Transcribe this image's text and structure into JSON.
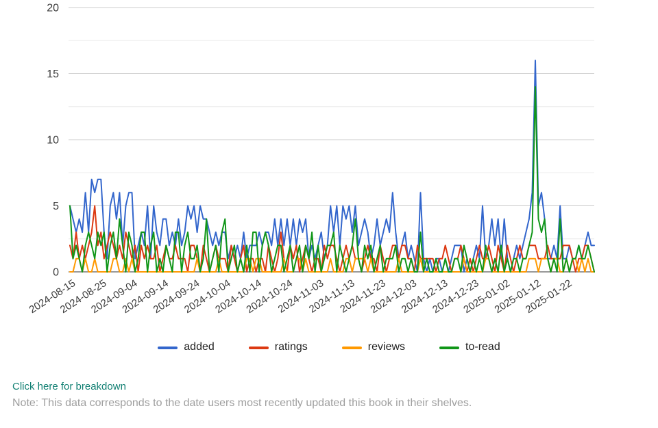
{
  "chart_data": {
    "type": "line",
    "title": "",
    "xlabel": "",
    "ylabel": "",
    "ylim": [
      0,
      20
    ],
    "y_ticks": [
      0,
      5,
      10,
      15,
      20
    ],
    "y_minor_ticks": [
      2.5,
      7.5,
      12.5,
      17.5
    ],
    "grid": true,
    "legend_position": "bottom",
    "x_tick_interval_days": 10,
    "x_tick_labels": [
      "2024-08-15",
      "2024-08-25",
      "2024-09-04",
      "2024-09-14",
      "2024-09-24",
      "2024-10-04",
      "2024-10-14",
      "2024-10-24",
      "2024-11-03",
      "2024-11-13",
      "2024-11-23",
      "2024-12-03",
      "2024-12-13",
      "2024-12-23",
      "2025-01-02",
      "2025-01-12",
      "2025-01-22"
    ],
    "series": [
      {
        "name": "added",
        "color": "#3366cc",
        "values": [
          5,
          4,
          3,
          4,
          3,
          6,
          3,
          7,
          6,
          7,
          7,
          3,
          1,
          5,
          6,
          4,
          6,
          2,
          5,
          6,
          6,
          1,
          2,
          3,
          2,
          5,
          1,
          5,
          3,
          2,
          4,
          4,
          2,
          3,
          2,
          4,
          2,
          3,
          5,
          4,
          5,
          3,
          5,
          4,
          4,
          3,
          2,
          3,
          2,
          3,
          3,
          1,
          2,
          1,
          2,
          1,
          3,
          1,
          2,
          2,
          2,
          3,
          2,
          3,
          3,
          2,
          4,
          2,
          4,
          2,
          4,
          2,
          4,
          2,
          4,
          3,
          4,
          1,
          2,
          1,
          2,
          3,
          1,
          2,
          5,
          3,
          5,
          2,
          5,
          4,
          5,
          3,
          5,
          2,
          3,
          4,
          3,
          1,
          2,
          4,
          2,
          3,
          4,
          3,
          6,
          3,
          1,
          2,
          3,
          1,
          2,
          1,
          0,
          6,
          1,
          0,
          1,
          0,
          1,
          1,
          0,
          1,
          0,
          1,
          2,
          2,
          2,
          0,
          1,
          0,
          1,
          2,
          1,
          5,
          1,
          2,
          4,
          2,
          4,
          1,
          4,
          1,
          0,
          1,
          2,
          1,
          2,
          3,
          4,
          6,
          16,
          5,
          6,
          4,
          1,
          1,
          2,
          1,
          5,
          1,
          1,
          2,
          1,
          1,
          2,
          1,
          2,
          3,
          2,
          2
        ]
      },
      {
        "name": "ratings",
        "color": "#dc3912",
        "values": [
          2,
          1,
          3,
          1,
          2,
          1,
          2,
          3,
          5,
          2,
          3,
          1,
          2,
          3,
          2,
          1,
          2,
          1,
          3,
          2,
          1,
          2,
          0,
          2,
          1,
          2,
          1,
          1,
          2,
          0,
          1,
          2,
          1,
          1,
          2,
          1,
          1,
          1,
          0,
          2,
          2,
          1,
          0,
          2,
          1,
          0,
          1,
          2,
          1,
          1,
          1,
          0,
          2,
          1,
          0,
          1,
          2,
          0,
          1,
          1,
          0,
          1,
          1,
          0,
          2,
          1,
          0,
          1,
          3,
          1,
          0,
          2,
          1,
          2,
          0,
          1,
          2,
          1,
          0,
          1,
          1,
          0,
          2,
          1,
          2,
          2,
          1,
          0,
          1,
          2,
          1,
          2,
          1,
          1,
          0,
          1,
          2,
          1,
          1,
          0,
          2,
          1,
          0,
          1,
          2,
          2,
          1,
          2,
          2,
          1,
          1,
          0,
          2,
          1,
          1,
          1,
          1,
          1,
          0,
          1,
          1,
          2,
          1,
          0,
          1,
          1,
          2,
          1,
          0,
          1,
          0,
          1,
          2,
          1,
          1,
          2,
          1,
          0,
          2,
          1,
          0,
          2,
          1,
          0,
          1,
          2,
          1,
          1,
          2,
          2,
          2,
          1,
          1,
          1,
          2,
          1,
          1,
          1,
          1,
          2,
          2,
          2,
          1,
          0,
          1,
          1,
          2,
          2,
          1,
          0
        ]
      },
      {
        "name": "reviews",
        "color": "#ff9900",
        "values": [
          0,
          0,
          1,
          1,
          0,
          1,
          0,
          0,
          1,
          0,
          0,
          0,
          0,
          0,
          1,
          1,
          0,
          0,
          1,
          0,
          1,
          0,
          0,
          0,
          0,
          0,
          0,
          0,
          0,
          0,
          0,
          0,
          0,
          0,
          0,
          0,
          0,
          0,
          0,
          0,
          0,
          1,
          0,
          0,
          0,
          0,
          0,
          0,
          1,
          0,
          0,
          0,
          0,
          0,
          0,
          0,
          0,
          1,
          1,
          0,
          1,
          1,
          0,
          0,
          0,
          0,
          0,
          0,
          0,
          1,
          0,
          0,
          0,
          1,
          1,
          0,
          1,
          0,
          0,
          0,
          0,
          0,
          0,
          0,
          1,
          0,
          0,
          0,
          0,
          1,
          1,
          0,
          1,
          1,
          1,
          1,
          0,
          1,
          0,
          0,
          0,
          0,
          0,
          0,
          0,
          0,
          1,
          0,
          0,
          0,
          0,
          0,
          0,
          1,
          0,
          0,
          0,
          0,
          0,
          0,
          0,
          0,
          0,
          0,
          0,
          0,
          0,
          1,
          0,
          0,
          0,
          0,
          0,
          0,
          1,
          1,
          0,
          0,
          0,
          0,
          0,
          0,
          0,
          0,
          0,
          0,
          0,
          0,
          1,
          1,
          1,
          0,
          1,
          1,
          1,
          0,
          1,
          1,
          0,
          0,
          1,
          0,
          1,
          1,
          0,
          1,
          0,
          1,
          0,
          0
        ]
      },
      {
        "name": "to-read",
        "color": "#109618",
        "values": [
          5,
          1,
          2,
          1,
          0,
          2,
          3,
          2,
          1,
          3,
          2,
          3,
          0,
          2,
          3,
          1,
          4,
          2,
          0,
          3,
          2,
          0,
          1,
          3,
          3,
          0,
          2,
          3,
          0,
          1,
          0,
          2,
          1,
          0,
          3,
          3,
          0,
          2,
          3,
          1,
          1,
          2,
          0,
          1,
          4,
          0,
          1,
          2,
          0,
          3,
          4,
          0,
          1,
          2,
          0,
          1,
          0,
          2,
          0,
          3,
          3,
          0,
          2,
          3,
          2,
          0,
          1,
          2,
          2,
          0,
          1,
          2,
          0,
          1,
          2,
          0,
          2,
          1,
          3,
          0,
          2,
          0,
          1,
          2,
          2,
          3,
          0,
          2,
          1,
          0,
          1,
          2,
          4,
          1,
          0,
          2,
          1,
          2,
          0,
          1,
          2,
          0,
          1,
          1,
          1,
          2,
          0,
          1,
          1,
          0,
          1,
          0,
          0,
          3,
          0,
          1,
          0,
          0,
          1,
          0,
          0,
          1,
          0,
          0,
          1,
          1,
          0,
          2,
          1,
          0,
          1,
          0,
          1,
          0,
          2,
          1,
          0,
          1,
          0,
          2,
          0,
          1,
          0,
          1,
          1,
          0,
          1,
          1,
          2,
          3,
          14,
          4,
          3,
          4,
          1,
          0,
          1,
          0,
          4,
          0,
          1,
          0,
          1,
          1,
          2,
          1,
          1,
          2,
          1,
          0
        ]
      }
    ]
  },
  "axis_style": {
    "label_color": "#3c3c3c",
    "major_grid_color": "#cccccc",
    "minor_grid_color": "#ebebeb",
    "baseline_color": "#333333"
  },
  "footer": {
    "breakdown_link": "Click here for breakdown",
    "breakdown_link_color": "#128073",
    "note": "Note: This data corresponds to the date users most recently updated this book in their shelves.",
    "note_color": "#9e9e9e"
  }
}
